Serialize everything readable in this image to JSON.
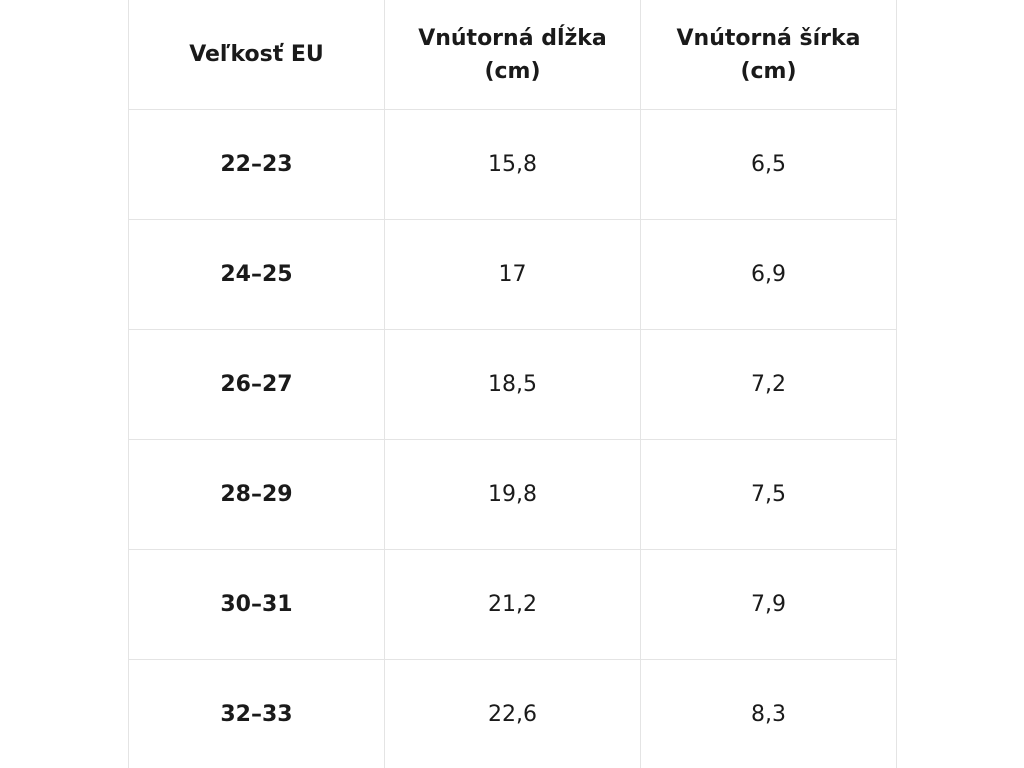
{
  "table": {
    "headers": [
      "Veľkosť EU",
      "Vnútorná dĺžka (cm)",
      "Vnútorná šírka (cm)"
    ],
    "rows": [
      [
        "22–23",
        "15,8",
        "6,5"
      ],
      [
        "24–25",
        "17",
        "6,9"
      ],
      [
        "26–27",
        "18,5",
        "7,2"
      ],
      [
        "28–29",
        "19,8",
        "7,5"
      ],
      [
        "30–31",
        "21,2",
        "7,9"
      ],
      [
        "32–33",
        "22,6",
        "8,3"
      ]
    ]
  }
}
